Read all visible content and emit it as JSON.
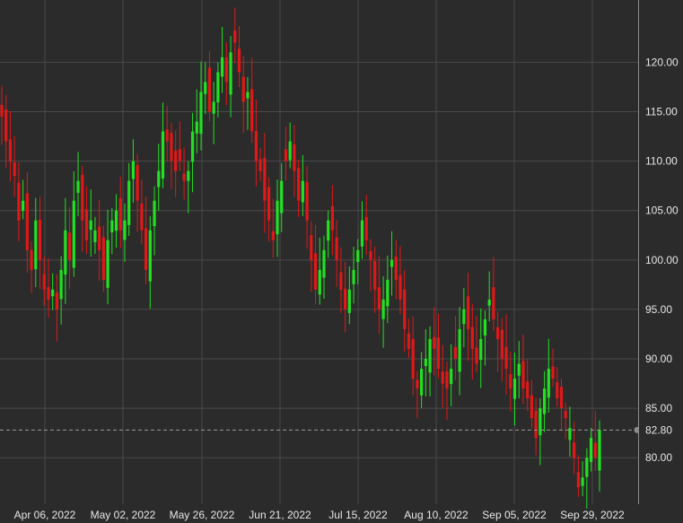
{
  "chart_data": {
    "type": "candlestick",
    "y_range": [
      75.3,
      126.3
    ],
    "y_ticks": [
      {
        "value": 80,
        "label": "80.00"
      },
      {
        "value": 85,
        "label": "85.00"
      },
      {
        "value": 90,
        "label": "90.00"
      },
      {
        "value": 95,
        "label": "95.00"
      },
      {
        "value": 100,
        "label": "100.00"
      },
      {
        "value": 105,
        "label": "105.00"
      },
      {
        "value": 110,
        "label": "110.00"
      },
      {
        "value": 115,
        "label": "115.00"
      },
      {
        "value": 120,
        "label": "120.00"
      }
    ],
    "x_ticks": [
      "Apr 06, 2022",
      "May 02, 2022",
      "May 26, 2022",
      "Jun 21, 2022",
      "Jul 15, 2022",
      "Aug 10, 2022",
      "Sep 05, 2022",
      "Sep 29, 2022"
    ],
    "last_price": {
      "value": 82.8,
      "label": "82.80"
    },
    "colors": {
      "up": "#22e022",
      "down": "#e01818",
      "grid": "#4a4a4a",
      "text": "#e6e6e6",
      "background": "#2b2b2b",
      "last_line": "#9a9a9a"
    },
    "grid": true,
    "closes": [
      114.5,
      112.0,
      110.0,
      108.5,
      104.0,
      106.0,
      101.0,
      99.0,
      104.0,
      100.0,
      97.0,
      96.0,
      97.0,
      95.0,
      99.0,
      103.0,
      100.0,
      106.0,
      108.0,
      104.0,
      102.0,
      104.0,
      103.0,
      101.0,
      98.0,
      102.0,
      104.0,
      105.0,
      103.0,
      104.0,
      108.0,
      110.0,
      106.0,
      103.0,
      99.0,
      103.0,
      106.0,
      109.0,
      113.0,
      112.0,
      110.0,
      109.0,
      110.0,
      108.0,
      109.0,
      113.0,
      114.0,
      117.0,
      118.0,
      115.0,
      116.0,
      119.0,
      120.5,
      118.0,
      121.0,
      122.0,
      119.0,
      116.0,
      117.0,
      113.0,
      110.0,
      109.0,
      106.0,
      104.0,
      102.0,
      106.0,
      108.0,
      110.0,
      112.0,
      109.0,
      106.0,
      108.0,
      104.0,
      100.0,
      97.0,
      99.0,
      101.0,
      104.0,
      103.0,
      100.0,
      97.0,
      95.0,
      97.0,
      99.0,
      101.0,
      104.0,
      102.0,
      100.0,
      97.0,
      95.0,
      96.0,
      98.0,
      100.0,
      98.0,
      96.0,
      93.0,
      91.0,
      88.0,
      87.0,
      89.0,
      90.0,
      92.0,
      91.0,
      89.0,
      87.5,
      87.0,
      89.0,
      90.0,
      93.0,
      95.0,
      93.0,
      91.0,
      89.5,
      92.0,
      94.0,
      96.0,
      94.0,
      92.0,
      90.0,
      89.0,
      87.0,
      88.0,
      89.5,
      87.0,
      86.0,
      84.0,
      82.0,
      85.0,
      87.0,
      89.0,
      88.0,
      86.0,
      85.0,
      84.0,
      83.0,
      80.0,
      77.0,
      78.0,
      80.0,
      82.0,
      80.0,
      82.8
    ]
  }
}
